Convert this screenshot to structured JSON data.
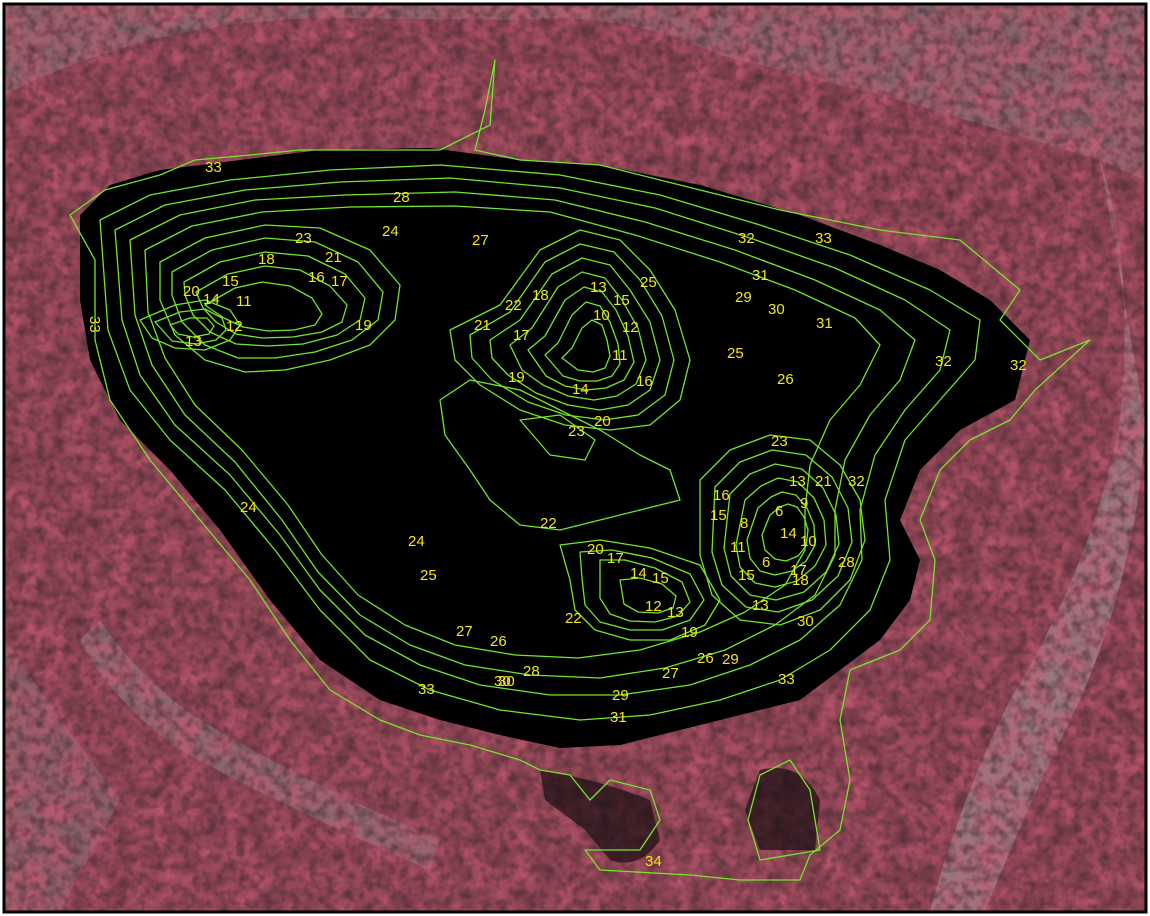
{
  "map": {
    "kind": "infrared aerial photograph with bathymetric depth contours",
    "colors": {
      "contour_line": "#74e62a",
      "contour_label": "#f3e61c",
      "water": "#000000",
      "vegetation": "#8c1f2c",
      "land": "#9a8f92",
      "frame": "#000000"
    },
    "contour_labels": [
      "33",
      "28",
      "27",
      "24",
      "23",
      "21",
      "18",
      "20",
      "15",
      "14",
      "11",
      "12",
      "16",
      "17",
      "19",
      "13",
      "33",
      "22",
      "18",
      "13",
      "15",
      "25",
      "10",
      "12",
      "21",
      "17",
      "11",
      "19",
      "16",
      "14",
      "20",
      "23",
      "32",
      "33",
      "31",
      "29",
      "30",
      "31",
      "25",
      "26",
      "32",
      "32",
      "23",
      "21",
      "13",
      "9",
      "16",
      "15",
      "6",
      "8",
      "14",
      "10",
      "6",
      "11",
      "15",
      "17",
      "32",
      "24",
      "25",
      "22",
      "20",
      "17",
      "14",
      "15",
      "12",
      "13",
      "18",
      "13",
      "19",
      "28",
      "30",
      "22",
      "27",
      "26",
      "28",
      "30",
      "33",
      "29",
      "31",
      "27",
      "26",
      "29",
      "24",
      "30",
      "33",
      "34"
    ]
  }
}
